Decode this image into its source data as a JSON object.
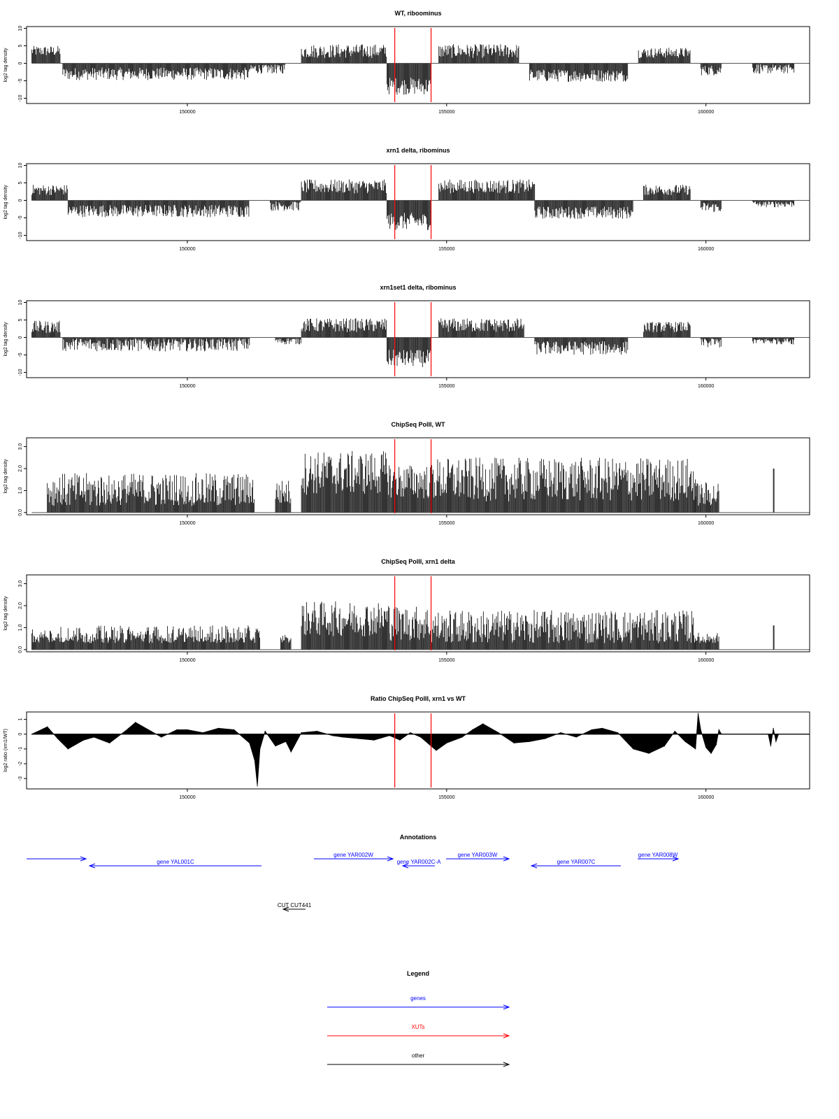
{
  "chart_data": [
    {
      "type": "bar",
      "title": "WT, riboominus",
      "ylabel": "log2 tag density",
      "xlabel": "",
      "xlim": [
        146900,
        162000
      ],
      "ylim": [
        -11.5,
        10.5
      ],
      "yticks": [
        -10,
        -5,
        0,
        5,
        10
      ],
      "ytick_labels": [
        "-10",
        "-5",
        "0",
        "5",
        "10"
      ],
      "xticks": [
        150000,
        155000,
        160000
      ],
      "xtick_labels": [
        "150000",
        "155000",
        "160000"
      ],
      "marker_positions": [
        154000,
        154700
      ],
      "baseline": 0,
      "segments": [
        {
          "start": 147000,
          "end": 147550,
          "level": 3.5,
          "noise": 1.5
        },
        {
          "start": 147600,
          "end": 151200,
          "level": -3.0,
          "noise": 1.8
        },
        {
          "start": 151200,
          "end": 151900,
          "level": -1.5,
          "noise": 1.5
        },
        {
          "start": 152200,
          "end": 153850,
          "level": 3.5,
          "noise": 2.0
        },
        {
          "start": 153850,
          "end": 154700,
          "level": -6.5,
          "noise": 2.5
        },
        {
          "start": 154850,
          "end": 156400,
          "level": 3.5,
          "noise": 2.0
        },
        {
          "start": 156600,
          "end": 158500,
          "level": -3.5,
          "noise": 1.8
        },
        {
          "start": 158700,
          "end": 159700,
          "level": 3.0,
          "noise": 1.5
        },
        {
          "start": 159900,
          "end": 160300,
          "level": -2.0,
          "noise": 1.5
        },
        {
          "start": 160900,
          "end": 161700,
          "level": -1.5,
          "noise": 1.5
        }
      ]
    },
    {
      "type": "bar",
      "title": "xrn1 delta, ribominus",
      "ylabel": "log2 tag density",
      "xlabel": "",
      "xlim": [
        146900,
        162000
      ],
      "ylim": [
        -11.5,
        10.5
      ],
      "yticks": [
        -10,
        -5,
        0,
        5,
        10
      ],
      "ytick_labels": [
        "-10",
        "-5",
        "0",
        "5",
        "10"
      ],
      "xticks": [
        150000,
        155000,
        160000
      ],
      "xtick_labels": [
        "150000",
        "155000",
        "160000"
      ],
      "marker_positions": [
        154000,
        154700
      ],
      "baseline": 0,
      "segments": [
        {
          "start": 147000,
          "end": 147700,
          "level": 3.0,
          "noise": 1.5
        },
        {
          "start": 147700,
          "end": 151200,
          "level": -3.0,
          "noise": 1.8
        },
        {
          "start": 151600,
          "end": 152200,
          "level": -1.5,
          "noise": 1.5
        },
        {
          "start": 152200,
          "end": 153850,
          "level": 4.0,
          "noise": 2.0
        },
        {
          "start": 153850,
          "end": 154700,
          "level": -6.0,
          "noise": 2.5
        },
        {
          "start": 154850,
          "end": 156700,
          "level": 4.0,
          "noise": 2.0
        },
        {
          "start": 156700,
          "end": 158600,
          "level": -3.5,
          "noise": 1.8
        },
        {
          "start": 158800,
          "end": 159700,
          "level": 3.0,
          "noise": 1.5
        },
        {
          "start": 159900,
          "end": 160300,
          "level": -2.0,
          "noise": 1.5
        },
        {
          "start": 160900,
          "end": 161700,
          "level": -1.0,
          "noise": 1.0
        }
      ]
    },
    {
      "type": "bar",
      "title": "xrn1set1 delta, ribominus",
      "ylabel": "log2 tag density",
      "xlabel": "",
      "xlim": [
        146900,
        162000
      ],
      "ylim": [
        -11.5,
        10.5
      ],
      "yticks": [
        -10,
        -5,
        0,
        5,
        10
      ],
      "ytick_labels": [
        "-10",
        "-5",
        "0",
        "5",
        "10"
      ],
      "xticks": [
        150000,
        155000,
        160000
      ],
      "xtick_labels": [
        "150000",
        "155000",
        "160000"
      ],
      "marker_positions": [
        154000,
        154700
      ],
      "baseline": 0,
      "segments": [
        {
          "start": 147000,
          "end": 147550,
          "level": 3.0,
          "noise": 1.8
        },
        {
          "start": 147600,
          "end": 151200,
          "level": -2.0,
          "noise": 2.0
        },
        {
          "start": 151700,
          "end": 152200,
          "level": -1.0,
          "noise": 1.0
        },
        {
          "start": 152200,
          "end": 153850,
          "level": 3.5,
          "noise": 2.0
        },
        {
          "start": 153850,
          "end": 154700,
          "level": -6.0,
          "noise": 2.5
        },
        {
          "start": 154850,
          "end": 156500,
          "level": 3.5,
          "noise": 2.0
        },
        {
          "start": 156700,
          "end": 158500,
          "level": -3.0,
          "noise": 2.0
        },
        {
          "start": 158800,
          "end": 159700,
          "level": 3.0,
          "noise": 1.5
        },
        {
          "start": 159900,
          "end": 160300,
          "level": -1.5,
          "noise": 1.5
        },
        {
          "start": 160900,
          "end": 161700,
          "level": -1.0,
          "noise": 1.0
        }
      ]
    },
    {
      "type": "bar",
      "title": "ChipSeq PolII, WT",
      "ylabel": "log2 tag density",
      "xlabel": "",
      "xlim": [
        146900,
        162000
      ],
      "ylim": [
        -0.1,
        3.4
      ],
      "yticks": [
        0.0,
        1.0,
        2.0,
        3.0
      ],
      "ytick_labels": [
        "0.0",
        "1.0",
        "2.0",
        "3.0"
      ],
      "xticks": [
        150000,
        155000,
        160000
      ],
      "xtick_labels": [
        "150000",
        "155000",
        "160000"
      ],
      "marker_positions": [
        154000,
        154700
      ],
      "baseline": 0,
      "segments": [
        {
          "start": 147300,
          "end": 151300,
          "level": 1.0,
          "noise": 0.8
        },
        {
          "start": 151700,
          "end": 152000,
          "level": 0.9,
          "noise": 0.6
        },
        {
          "start": 152200,
          "end": 153900,
          "level": 1.8,
          "noise": 1.0
        },
        {
          "start": 153900,
          "end": 154700,
          "level": 1.4,
          "noise": 0.8
        },
        {
          "start": 154700,
          "end": 159800,
          "level": 1.5,
          "noise": 1.0
        },
        {
          "start": 159800,
          "end": 160250,
          "level": 0.8,
          "noise": 0.6
        },
        {
          "start": 161300,
          "end": 161320,
          "level": 2.0,
          "noise": 0.0
        }
      ]
    },
    {
      "type": "bar",
      "title": "ChipSeq PolII, xrn1 delta",
      "ylabel": "log2 tag density",
      "xlabel": "",
      "xlim": [
        146900,
        162000
      ],
      "ylim": [
        -0.1,
        3.4
      ],
      "yticks": [
        0.0,
        1.0,
        2.0,
        3.0
      ],
      "ytick_labels": [
        "0.0",
        "1.0",
        "2.0",
        "3.0"
      ],
      "xticks": [
        150000,
        155000,
        160000
      ],
      "xtick_labels": [
        "150000",
        "155000",
        "160000"
      ],
      "marker_positions": [
        154000,
        154700
      ],
      "baseline": 0,
      "segments": [
        {
          "start": 147000,
          "end": 151400,
          "level": 0.5,
          "noise": 0.6
        },
        {
          "start": 151800,
          "end": 152000,
          "level": 0.4,
          "noise": 0.3
        },
        {
          "start": 152200,
          "end": 153900,
          "level": 1.4,
          "noise": 0.8
        },
        {
          "start": 153900,
          "end": 154700,
          "level": 1.2,
          "noise": 0.8
        },
        {
          "start": 154700,
          "end": 159800,
          "level": 1.0,
          "noise": 0.8
        },
        {
          "start": 159800,
          "end": 160250,
          "level": 0.4,
          "noise": 0.4
        },
        {
          "start": 161300,
          "end": 161320,
          "level": 1.1,
          "noise": 0.0
        }
      ]
    },
    {
      "type": "area",
      "title": "Ratio ChipSeq PolII, xrn1 vs WT",
      "ylabel": "log2 ratio (xrn1/WT)",
      "xlabel": "",
      "xlim": [
        146900,
        162000
      ],
      "ylim": [
        -3.7,
        1.5
      ],
      "yticks": [
        -3,
        -2,
        -1,
        0,
        1
      ],
      "ytick_labels": [
        "-3",
        "-2",
        "-1",
        "0",
        "1"
      ],
      "xticks": [
        150000,
        155000,
        160000
      ],
      "xtick_labels": [
        "150000",
        "155000",
        "160000"
      ],
      "marker_positions": [
        154000,
        154700
      ],
      "baseline": 0,
      "x": [
        147000,
        147300,
        147500,
        147700,
        148000,
        148200,
        148500,
        148800,
        149000,
        149300,
        149500,
        149800,
        150000,
        150300,
        150600,
        150900,
        151000,
        151200,
        151300,
        151350,
        151400,
        151500,
        151700,
        151900,
        152000,
        152200,
        152500,
        152800,
        153000,
        153300,
        153600,
        153900,
        154100,
        154300,
        154500,
        154700,
        154800,
        155000,
        155300,
        155500,
        155700,
        156000,
        156300,
        156600,
        156900,
        157200,
        157500,
        157800,
        158000,
        158300,
        158600,
        158900,
        159200,
        159400,
        159600,
        159800,
        159850,
        159900,
        160000,
        160100,
        160200,
        160250,
        160300,
        161200,
        161250,
        161300,
        161350,
        161400,
        162000
      ],
      "y": [
        0.0,
        0.5,
        -0.3,
        -1.0,
        -0.4,
        -0.2,
        -0.6,
        0.2,
        0.8,
        0.2,
        -0.2,
        0.3,
        0.3,
        0.1,
        0.4,
        0.3,
        0.0,
        -0.6,
        -1.8,
        -3.5,
        -1.0,
        0.2,
        -0.8,
        -0.5,
        -1.2,
        0.1,
        0.2,
        -0.1,
        -0.2,
        -0.3,
        -0.4,
        -0.1,
        -0.4,
        0.1,
        -0.2,
        -0.8,
        -1.1,
        -0.6,
        -0.2,
        0.3,
        0.7,
        0.1,
        -0.6,
        -0.5,
        -0.3,
        0.1,
        -0.2,
        0.3,
        0.4,
        0.1,
        -1.0,
        -1.3,
        -0.8,
        0.2,
        -0.5,
        -1.0,
        1.4,
        0.3,
        -0.9,
        -1.3,
        -0.7,
        0.3,
        0.0,
        0.0,
        -0.8,
        0.4,
        -0.5,
        0.0,
        0.0
      ]
    }
  ],
  "annotations": {
    "title": "Annotations",
    "items": [
      {
        "label": "",
        "direction": "right",
        "color": "#0000ff",
        "start_x": 38,
        "end_x": 123,
        "row": 0
      },
      {
        "label": "gene YAL001C",
        "direction": "left",
        "color": "#0000ff",
        "start_x": 128,
        "end_x": 374,
        "row": 1
      },
      {
        "label": "gene YAR002W",
        "direction": "right",
        "color": "#0000ff",
        "start_x": 449,
        "end_x": 562,
        "row": 0
      },
      {
        "label": "gene YAR002C-A",
        "direction": "left",
        "color": "#0000ff",
        "start_x": 576,
        "end_x": 622,
        "row": 1
      },
      {
        "label": "gene YAR003W",
        "direction": "right",
        "color": "#0000ff",
        "start_x": 638,
        "end_x": 728,
        "row": 0
      },
      {
        "label": "gene YAR007C",
        "direction": "left",
        "color": "#0000ff",
        "start_x": 760,
        "end_x": 888,
        "row": 1
      },
      {
        "label": "gene YAR008W",
        "direction": "right",
        "color": "#0000ff",
        "start_x": 912,
        "end_x": 970,
        "row": 0
      },
      {
        "label": "CUT CUT441",
        "direction": "left",
        "color": "#000000",
        "start_x": 405,
        "end_x": 437,
        "row": 2
      }
    ]
  },
  "legend": {
    "title": "Legend",
    "items": [
      {
        "label": "genes",
        "color": "#0000ff"
      },
      {
        "label": "XUTs",
        "color": "#ff0000"
      },
      {
        "label": "other",
        "color": "#000000"
      }
    ]
  }
}
